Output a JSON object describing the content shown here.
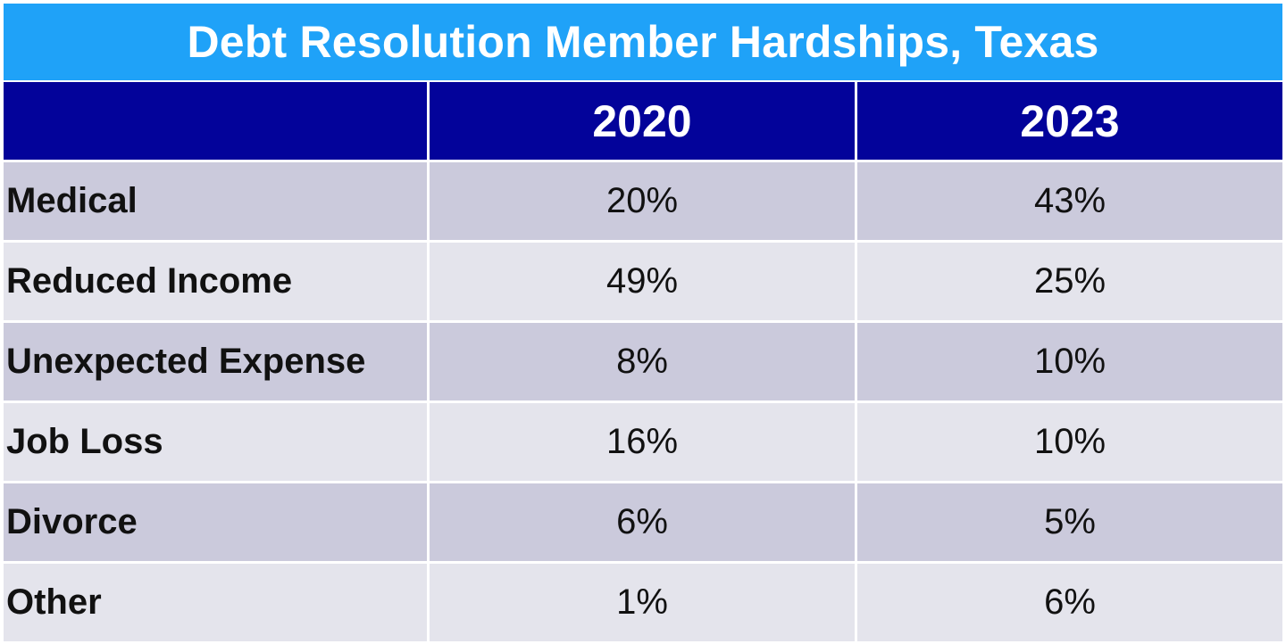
{
  "chart_data": {
    "type": "table",
    "title": "Debt Resolution Member Hardships, Texas",
    "columns": [
      "2020",
      "2023"
    ],
    "rows": [
      {
        "label": "Medical",
        "values": [
          "20%",
          "43%"
        ]
      },
      {
        "label": "Reduced Income",
        "values": [
          "49%",
          "25%"
        ]
      },
      {
        "label": "Unexpected Expense",
        "values": [
          "8%",
          "10%"
        ]
      },
      {
        "label": "Job Loss",
        "values": [
          "16%",
          "10%"
        ]
      },
      {
        "label": "Divorce",
        "values": [
          "6%",
          "5%"
        ]
      },
      {
        "label": "Other",
        "values": [
          "1%",
          "6%"
        ]
      }
    ]
  },
  "colors": {
    "title_bg": "#1fa2f8",
    "header_bg": "#03039a",
    "row_dark": "#cbcadc",
    "row_light": "#e4e4ec"
  }
}
